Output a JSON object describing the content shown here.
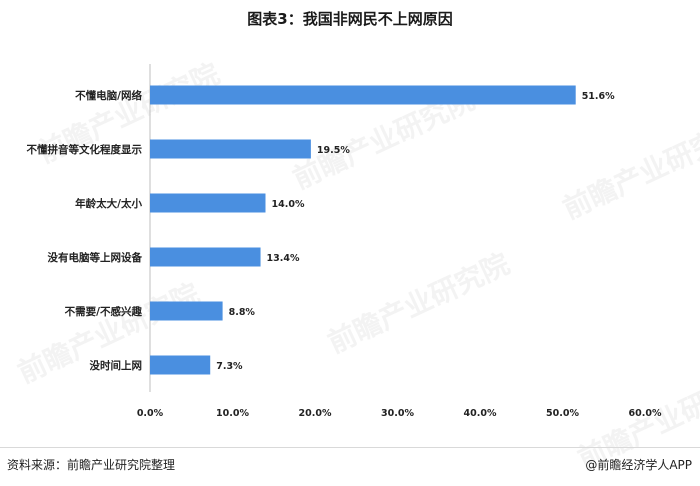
{
  "page": {
    "title": "图表3：我国非网民不上网原因",
    "source": "资料来源：前瞻产业研究院整理",
    "brand": "@前瞻经济学人APP",
    "watermark": "前瞻产业研究院"
  },
  "chart_data": {
    "type": "bar",
    "orientation": "horizontal",
    "categories": [
      "不懂电脑/网络",
      "不懂拼音等文化程度显示",
      "年龄太大/太小",
      "没有电脑等上网设备",
      "不需要/不感兴趣",
      "没时间上网"
    ],
    "values": [
      51.6,
      19.5,
      14.0,
      13.4,
      8.8,
      7.3
    ],
    "value_labels": [
      "51.6%",
      "19.5%",
      "14.0%",
      "13.4%",
      "8.8%",
      "7.3%"
    ],
    "x_ticks": [
      0,
      10,
      20,
      30,
      40,
      50,
      60
    ],
    "x_tick_labels": [
      "0.0%",
      "10.0%",
      "20.0%",
      "30.0%",
      "40.0%",
      "50.0%",
      "60.0%"
    ],
    "xlim": [
      0,
      60
    ],
    "title": "图表3：我国非网民不上网原因",
    "xlabel": "",
    "ylabel": "",
    "grid": false,
    "bar_color": "#4a8fe0"
  }
}
